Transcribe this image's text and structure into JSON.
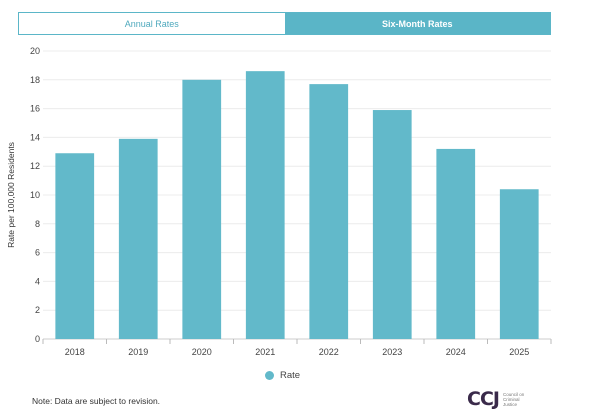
{
  "tabs": [
    {
      "label": "Annual Rates",
      "active": true
    },
    {
      "label": "Six-Month Rates",
      "active": false
    }
  ],
  "chart_data": {
    "type": "bar",
    "categories": [
      "2018",
      "2019",
      "2020",
      "2021",
      "2022",
      "2023",
      "2024",
      "2025"
    ],
    "series": [
      {
        "name": "Rate",
        "values": [
          12.9,
          13.9,
          18.0,
          18.6,
          17.7,
          15.9,
          13.2,
          10.4
        ]
      }
    ],
    "xlabel": "",
    "ylabel": "Rate per 100,000 Residents",
    "ylim": [
      0,
      20
    ],
    "yticks": [
      0,
      2,
      4,
      6,
      8,
      10,
      12,
      14,
      16,
      18,
      20
    ],
    "grid": true,
    "legend_position": "bottom-center",
    "bar_color": "#62b9ca"
  },
  "legend": {
    "label": "Rate",
    "icon": "circle-icon"
  },
  "note": "Note: Data are subject to revision.",
  "logo": {
    "mark": "CCJ",
    "text": "Council on Criminal Justice"
  }
}
